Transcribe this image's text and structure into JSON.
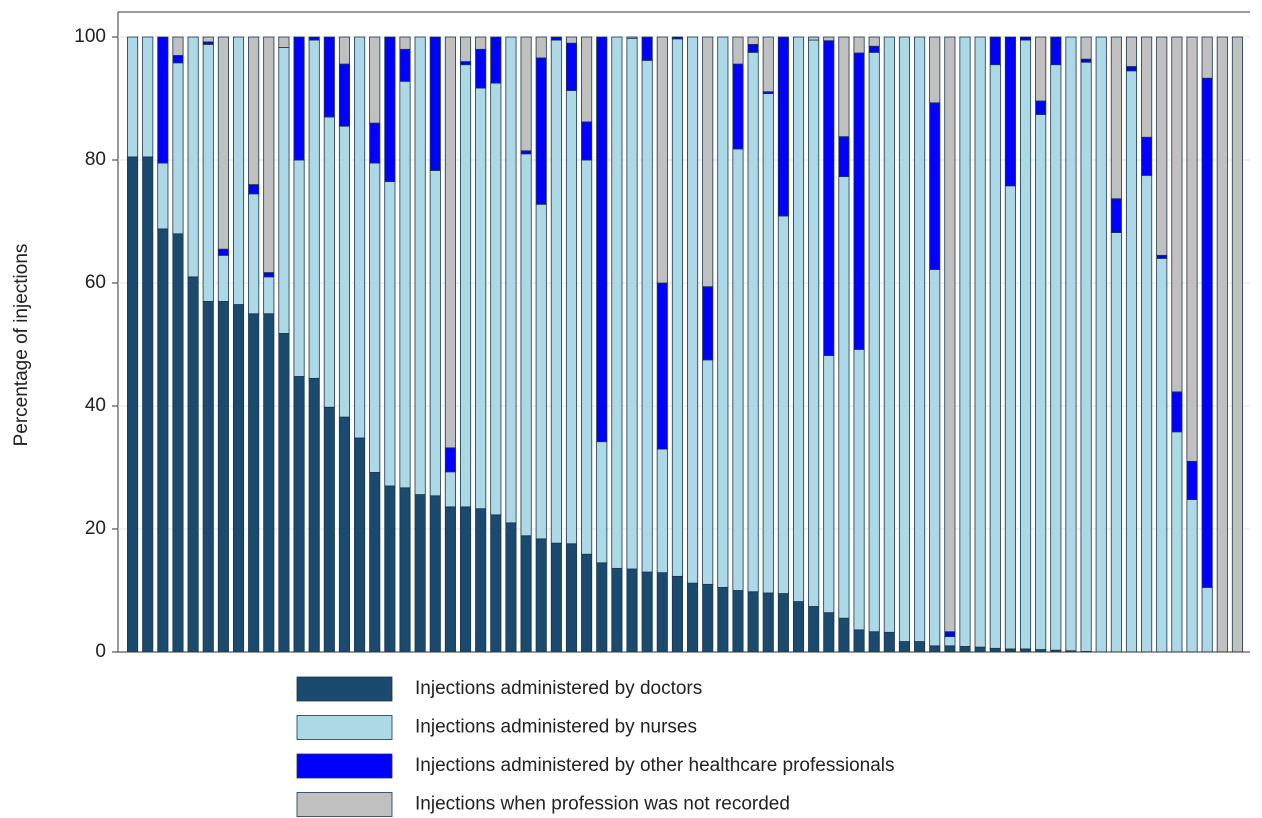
{
  "chart_data": {
    "type": "stacked_bar",
    "ylabel": "Percentage of injections",
    "ylim": [
      0,
      100
    ],
    "yticks": [
      0,
      20,
      40,
      60,
      80,
      100
    ],
    "grid": true,
    "legend": "bottom",
    "series": [
      {
        "name": "Injections administered by doctors",
        "color": "#1a4a6e",
        "values": [
          80.5,
          80.5,
          68.8,
          68,
          61,
          57,
          57,
          56.5,
          55,
          55,
          51.8,
          44.8,
          44.5,
          39.8,
          38.2,
          34.8,
          29.2,
          27,
          26.7,
          25.6,
          25.4,
          23.6,
          23.6,
          23.3,
          22.3,
          21,
          18.9,
          18.4,
          17.7,
          17.6,
          15.9,
          14.5,
          13.6,
          13.5,
          13,
          12.9,
          12.3,
          11.2,
          11,
          10.5,
          10,
          9.8,
          9.6,
          9.5,
          8.2,
          7.4,
          6.4,
          5.5,
          3.6,
          3.3,
          3.2,
          1.7,
          1.7,
          1,
          1,
          0.9,
          0.8,
          0.6,
          0.5,
          0.5,
          0.4,
          0.3,
          0.2,
          0.1,
          0,
          0,
          0,
          0,
          0,
          0,
          0,
          0,
          0,
          0
        ]
      },
      {
        "name": "Injections administered by nurses",
        "color": "#add8e6",
        "values": [
          19.5,
          19.5,
          10.7,
          27.8,
          39,
          41.8,
          7.5,
          43.5,
          19.5,
          6,
          46.5,
          35.2,
          55,
          47.2,
          47.3,
          65.2,
          50.3,
          49.5,
          66.1,
          74.4,
          52.9,
          5.7,
          71.9,
          68.4,
          70.2,
          79,
          62.1,
          54.4,
          81.8,
          73.7,
          64.1,
          19.7,
          86.4,
          86.3,
          83.2,
          20.1,
          87.4,
          88.8,
          36.5,
          89.5,
          71.8,
          87.7,
          81.2,
          61.4,
          91.8,
          92.1,
          41.8,
          71.8,
          45.6,
          94.2,
          96.8,
          98.3,
          98.3,
          61.2,
          1.5,
          99.1,
          99.2,
          94.9,
          75.3,
          99,
          87,
          95.2,
          99.8,
          95.8,
          100,
          68.2,
          94.5,
          77.5,
          64,
          35.8,
          24.8,
          10.5,
          0,
          0
        ]
      },
      {
        "name": "Injections administered by other healthcare professionals",
        "color": "#0000ff",
        "values": [
          0,
          0,
          20.5,
          1.2,
          0,
          0.4,
          1,
          0,
          1.5,
          0.7,
          0,
          20,
          0.5,
          13,
          10.1,
          0,
          6.5,
          23.5,
          5.2,
          0,
          21.7,
          3.9,
          0.5,
          6.3,
          7.5,
          0,
          0.5,
          23.8,
          0.5,
          7.7,
          6.2,
          65.8,
          0,
          0,
          3.8,
          27,
          0.3,
          0,
          11.9,
          0,
          13.8,
          1.3,
          0.3,
          29.1,
          0,
          0,
          51.2,
          6.5,
          48.2,
          1,
          0,
          0,
          0,
          27.1,
          0.8,
          0,
          0,
          4.5,
          24.2,
          0.5,
          2.2,
          4.5,
          0,
          0.5,
          0,
          5.5,
          0.7,
          6.2,
          0.5,
          6.5,
          6.2,
          82.8,
          0,
          0
        ]
      },
      {
        "name": "Injections when profession was not recorded",
        "color": "#c0c0c0",
        "values": [
          0,
          0,
          0,
          3,
          0,
          0.8,
          34.5,
          0,
          24,
          38.3,
          1.7,
          0,
          0,
          0,
          4.4,
          0,
          14,
          0,
          2,
          0,
          0,
          66.8,
          4,
          2,
          0,
          0,
          18.5,
          3.4,
          0,
          1,
          13.8,
          0,
          0,
          0.2,
          0,
          40,
          0,
          0,
          40.6,
          0,
          4.4,
          1.2,
          8.9,
          0,
          0,
          0.5,
          0.6,
          16.2,
          2.6,
          1.5,
          0,
          0,
          0,
          10.7,
          96.7,
          0,
          0,
          0,
          0,
          0,
          10.4,
          0,
          0,
          3.6,
          0,
          26.3,
          4.8,
          16.3,
          35.5,
          57.7,
          69,
          6.7,
          100,
          100
        ]
      }
    ]
  }
}
